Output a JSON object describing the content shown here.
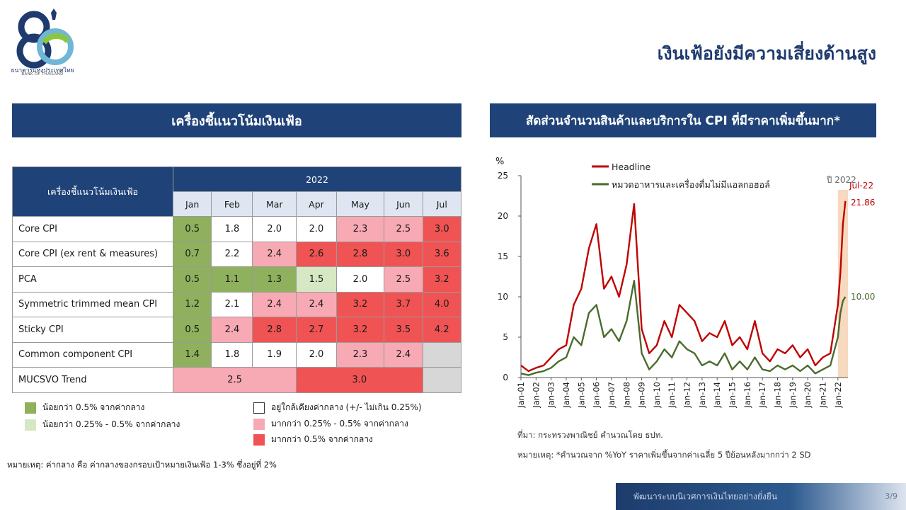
{
  "logo": {
    "caption_th": "ธนาคารแห่งประเทศไทย",
    "caption_en": "BANK OF THAILAND",
    "number": "80"
  },
  "title": "เงินเฟ้อยังมีความเสี่ยงด้านสูง",
  "left_banner": "เครื่องชี้แนวโน้มเงินเฟ้อ",
  "right_banner": "สัดส่วนจำนวนสินค้าและบริการใน CPI ที่มีราคาเพิ่มขึ้นมาก*",
  "table": {
    "header_label": "เครื่องชี้แนวโน้มเงินเฟ้อ",
    "year": "2022",
    "months": [
      "Jan",
      "Feb",
      "Mar",
      "Apr",
      "May",
      "Jun",
      "Jul"
    ],
    "rows": [
      {
        "label": "Core CPI",
        "values": [
          "0.5",
          "1.8",
          "2.0",
          "2.0",
          "2.3",
          "2.5",
          "3.0"
        ]
      },
      {
        "label": "Core CPI (ex rent & measures)",
        "values": [
          "0.7",
          "2.2",
          "2.4",
          "2.6",
          "2.8",
          "3.0",
          "3.6"
        ]
      },
      {
        "label": "PCA",
        "values": [
          "0.5",
          "1.1",
          "1.3",
          "1.5",
          "2.0",
          "2.5",
          "3.2"
        ]
      },
      {
        "label": "Symmetric trimmed mean CPI",
        "values": [
          "1.2",
          "2.1",
          "2.4",
          "2.4",
          "3.2",
          "3.7",
          "4.0"
        ]
      },
      {
        "label": "Sticky CPI",
        "values": [
          "0.5",
          "2.4",
          "2.8",
          "2.7",
          "3.2",
          "3.5",
          "4.2"
        ]
      },
      {
        "label": "Common component CPI",
        "values": [
          "1.4",
          "1.8",
          "1.9",
          "2.0",
          "2.3",
          "2.4",
          ""
        ]
      },
      {
        "label": "MUCSVO Trend",
        "values": [
          "2.5",
          "3.0"
        ]
      }
    ]
  },
  "legend": {
    "green": "น้อยกว่า 0.5% จากค่ากลาง",
    "light_green": "น้อยกว่า 0.25% - 0.5% จากค่ากลาง",
    "white": "อยู่ใกล้เคียงค่ากลาง (+/- ไม่เกิน 0.25%)",
    "pink": "มากกว่า 0.25% - 0.5% จากค่ากลาง",
    "red": "มากกว่า 0.5% จากค่ากลาง",
    "colors": {
      "green": "#8fb05c",
      "light_green": "#d6e7c4",
      "white": "#ffffff",
      "pink": "#f7a9b4",
      "red": "#f05353",
      "gray": "#d7d7d7"
    }
  },
  "note_left": "หมายเหตุ: ค่ากลาง คือ ค่ากลางของกรอบเป้าหมายเงินเฟ้อ  1-3% ซึ่งอยู่ที่ 2%",
  "chart_data": {
    "type": "line",
    "ylabel": "%",
    "ylim": [
      0,
      25
    ],
    "yticks": [
      "0",
      "5",
      "10",
      "15",
      "20",
      "25"
    ],
    "xticks": [
      "Jan-01",
      "Jan-02",
      "Jan-03",
      "Jan-04",
      "Jan-05",
      "Jan-06",
      "Jan-07",
      "Jan-08",
      "Jan-09",
      "Jan-10",
      "Jan-11",
      "Jan-12",
      "Jan-13",
      "Jan-14",
      "Jan-15",
      "Jan-16",
      "Jan-17",
      "Jan-18",
      "Jan-19",
      "Jan-20",
      "Jan-21",
      "Jan-22"
    ],
    "highlight_label": "ปี 2022",
    "legend_position": "top-left",
    "series": [
      {
        "name": "Headline",
        "color": "#c00000",
        "x": [
          "Jan-01",
          "Jul-01",
          "Jan-02",
          "Jul-02",
          "Jan-03",
          "Jul-03",
          "Jan-04",
          "Jul-04",
          "Jan-05",
          "Jul-05",
          "Jan-06",
          "Jul-06",
          "Jan-07",
          "Jul-07",
          "Jan-08",
          "Jul-08",
          "Jan-09",
          "Jul-09",
          "Jan-10",
          "Jul-10",
          "Jan-11",
          "Jul-11",
          "Jan-12",
          "Jul-12",
          "Jan-13",
          "Jul-13",
          "Jan-14",
          "Jul-14",
          "Jan-15",
          "Jul-15",
          "Jan-16",
          "Jul-16",
          "Jan-17",
          "Jul-17",
          "Jan-18",
          "Jul-18",
          "Jan-19",
          "Jul-19",
          "Jan-20",
          "Jul-20",
          "Jan-21",
          "Jul-21",
          "Jan-22",
          "Mar-22",
          "May-22",
          "Jul-22"
        ],
        "values": [
          1.5,
          0.8,
          1.2,
          1.5,
          2.5,
          3.5,
          4.0,
          9.0,
          11.0,
          16.0,
          19.0,
          11.0,
          12.5,
          10.0,
          14.0,
          21.5,
          6.0,
          3.0,
          4.0,
          7.0,
          5.0,
          9.0,
          8.0,
          7.0,
          4.5,
          5.5,
          5.0,
          7.0,
          4.0,
          5.0,
          3.5,
          7.0,
          3.0,
          2.0,
          3.5,
          3.0,
          4.0,
          2.5,
          3.5,
          1.5,
          2.5,
          3.0,
          9.0,
          13.0,
          19.0,
          21.86
        ]
      },
      {
        "name": "หมวดอาหารและเครื่องดื่มไม่มีแอลกอฮอล์",
        "color": "#4a6b2e",
        "x": [
          "Jan-01",
          "Jul-01",
          "Jan-02",
          "Jul-02",
          "Jan-03",
          "Jul-03",
          "Jan-04",
          "Jul-04",
          "Jan-05",
          "Jul-05",
          "Jan-06",
          "Jul-06",
          "Jan-07",
          "Jul-07",
          "Jan-08",
          "Jul-08",
          "Jan-09",
          "Jul-09",
          "Jan-10",
          "Jul-10",
          "Jan-11",
          "Jul-11",
          "Jan-12",
          "Jul-12",
          "Jan-13",
          "Jul-13",
          "Jan-14",
          "Jul-14",
          "Jan-15",
          "Jul-15",
          "Jan-16",
          "Jul-16",
          "Jan-17",
          "Jul-17",
          "Jan-18",
          "Jul-18",
          "Jan-19",
          "Jul-19",
          "Jan-20",
          "Jul-20",
          "Jan-21",
          "Jul-21",
          "Jan-22",
          "Mar-22",
          "May-22",
          "Jul-22"
        ],
        "values": [
          0.5,
          0.3,
          0.6,
          0.8,
          1.2,
          2.0,
          2.5,
          5.0,
          4.0,
          8.0,
          9.0,
          5.0,
          6.0,
          4.5,
          7.0,
          12.0,
          3.0,
          1.0,
          2.0,
          3.5,
          2.5,
          4.5,
          3.5,
          3.0,
          1.5,
          2.0,
          1.5,
          3.0,
          1.0,
          2.0,
          1.0,
          2.5,
          1.0,
          0.8,
          1.5,
          1.0,
          1.5,
          0.8,
          1.5,
          0.5,
          1.0,
          1.5,
          5.0,
          8.0,
          9.5,
          10.0
        ]
      }
    ],
    "annotations": [
      {
        "label": "Jul-22",
        "value": "21.86"
      },
      {
        "label": "",
        "value": "10.00"
      }
    ]
  },
  "source": "ที่มา: กระทรวงพาณิชย์ คำนวณโดย ธปท.",
  "note_right": "หมายเหตุ: *คำนวณจาก %YoY ราคาเพิ่มขึ้นจากค่าเฉลี่ย 5 ปีย้อนหลังมากกว่า 2 SD",
  "footer": {
    "tagline": "พัฒนาระบบนิเวศการเงินไทยอย่างยั่งยืน",
    "page": "3/9"
  }
}
